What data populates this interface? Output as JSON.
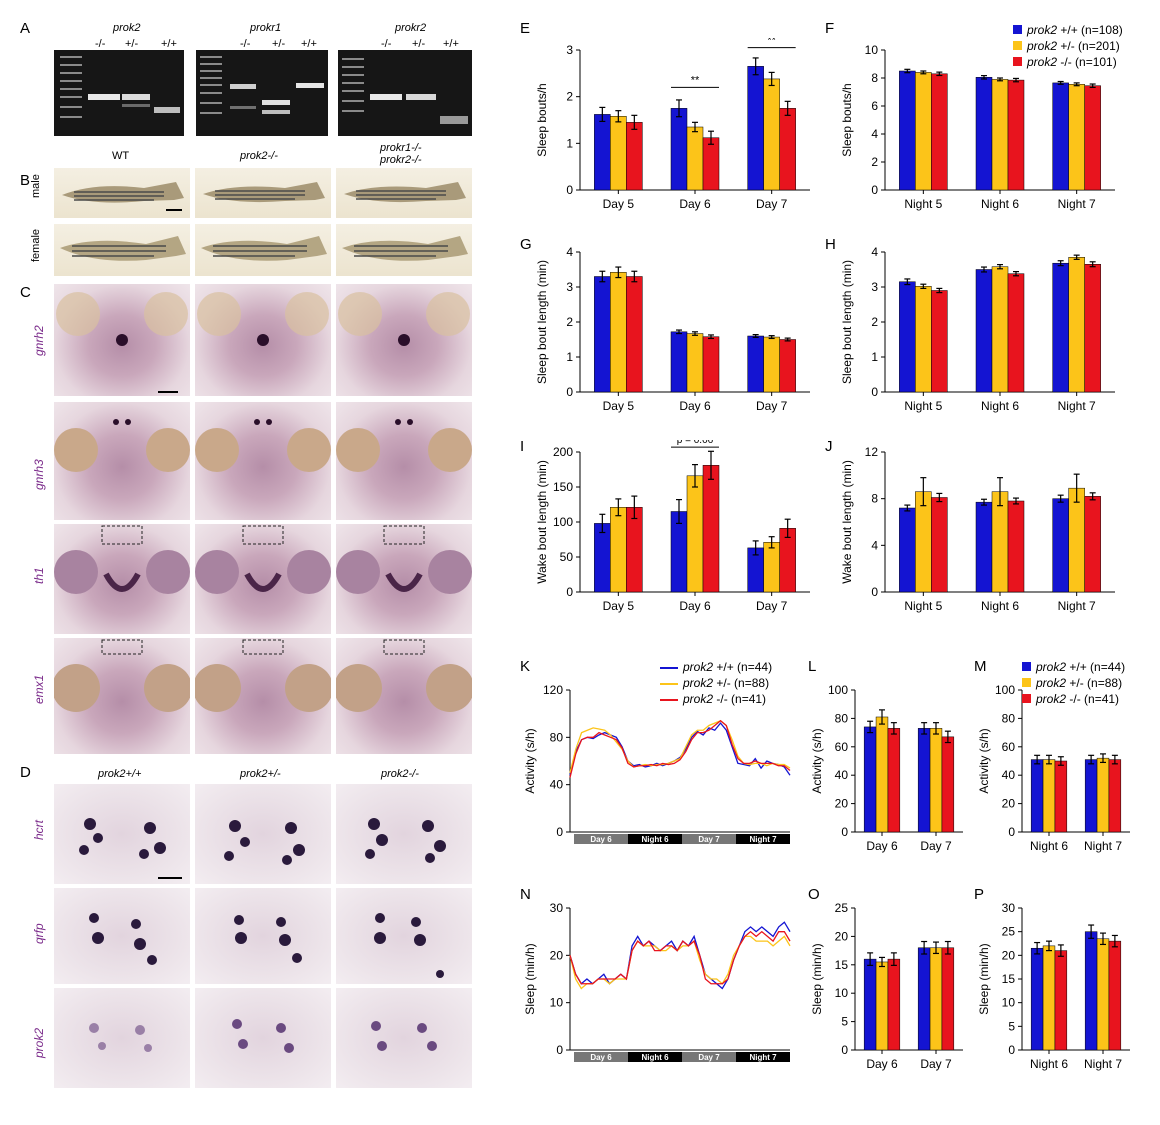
{
  "panels": {
    "A": "A",
    "B": "B",
    "C": "C",
    "D": "D",
    "E": "E",
    "F": "F",
    "G": "G",
    "H": "H",
    "I": "I",
    "J": "J",
    "K": "K",
    "L": "L",
    "M": "M",
    "N": "N",
    "O": "O",
    "P": "P"
  },
  "gels": [
    {
      "title": "prok2",
      "lanes": [
        "-/-",
        "+/-",
        "+/+"
      ]
    },
    {
      "title": "prokr1",
      "lanes": [
        "-/-",
        "+/-",
        "+/+"
      ]
    },
    {
      "title": "prokr2",
      "lanes": [
        "-/-",
        "+/-",
        "+/+"
      ]
    }
  ],
  "fish": {
    "cols": [
      "WT",
      "prok2-/-",
      "prokr1-/-",
      "prokr2-/-"
    ],
    "rows": [
      "male",
      "female"
    ]
  },
  "genes_c": [
    "gnrh2",
    "gnrh3",
    "th1",
    "emx1"
  ],
  "genes_d": [
    "hcrt",
    "qrfp",
    "prok2"
  ],
  "genotypes_d": [
    "prok2+/+",
    "prok2+/-",
    "prok2-/-"
  ],
  "colors": {
    "wt": "#1414d2",
    "het": "#fcc419",
    "mut": "#e8141e"
  },
  "legend_ef": [
    {
      "geno": "prok2",
      "label": "+/+ (n=108)"
    },
    {
      "geno": "prok2",
      "label": "+/- (n=201)"
    },
    {
      "geno": "prok2",
      "label": "-/- (n=101)"
    }
  ],
  "legend_km": [
    {
      "geno": "prok2",
      "label": "+/+ (n=44)"
    },
    {
      "geno": "prok2",
      "label": "+/- (n=88)"
    },
    {
      "geno": "prok2",
      "label": "-/- (n=41)"
    }
  ],
  "strip_k": [
    "Day 6",
    "Night 6",
    "Day 7",
    "Night 7"
  ],
  "chart_data": [
    {
      "panel": "E",
      "type": "bar",
      "ylabel": "Sleep bouts/h",
      "ylim": [
        0,
        3
      ],
      "yticks": [
        0,
        1,
        2,
        3
      ],
      "categories": [
        "Day 5",
        "Day 6",
        "Day 7"
      ],
      "series": [
        {
          "values": [
            1.62,
            1.75,
            2.65
          ],
          "err": [
            0.15,
            0.18,
            0.18
          ]
        },
        {
          "values": [
            1.58,
            1.35,
            2.38
          ],
          "err": [
            0.12,
            0.1,
            0.14
          ]
        },
        {
          "values": [
            1.45,
            1.12,
            1.75
          ],
          "err": [
            0.15,
            0.14,
            0.15
          ]
        }
      ],
      "sig": [
        {
          "cat": 1,
          "label": "**",
          "y": 2.2
        },
        {
          "cat": 2,
          "label": "**",
          "y": 3.05
        }
      ]
    },
    {
      "panel": "F",
      "type": "bar",
      "ylabel": "Sleep bouts/h",
      "ylim": [
        0,
        10
      ],
      "yticks": [
        0,
        2,
        4,
        6,
        8,
        10
      ],
      "categories": [
        "Night 5",
        "Night 6",
        "Night 7"
      ],
      "series": [
        {
          "values": [
            8.5,
            8.05,
            7.65
          ],
          "err": [
            0.12,
            0.12,
            0.1
          ]
        },
        {
          "values": [
            8.4,
            7.9,
            7.55
          ],
          "err": [
            0.1,
            0.1,
            0.1
          ]
        },
        {
          "values": [
            8.3,
            7.85,
            7.45
          ],
          "err": [
            0.12,
            0.12,
            0.12
          ]
        }
      ]
    },
    {
      "panel": "G",
      "type": "bar",
      "ylabel": "Sleep bout length (min)",
      "ylim": [
        0,
        4
      ],
      "yticks": [
        0,
        1,
        2,
        3,
        4
      ],
      "categories": [
        "Day 5",
        "Day 6",
        "Day 7"
      ],
      "series": [
        {
          "values": [
            3.3,
            1.72,
            1.6
          ],
          "err": [
            0.15,
            0.05,
            0.04
          ]
        },
        {
          "values": [
            3.42,
            1.67,
            1.57
          ],
          "err": [
            0.15,
            0.05,
            0.04
          ]
        },
        {
          "values": [
            3.3,
            1.58,
            1.5
          ],
          "err": [
            0.15,
            0.05,
            0.04
          ]
        }
      ]
    },
    {
      "panel": "H",
      "type": "bar",
      "ylabel": "Sleep bout length (min)",
      "ylim": [
        0,
        4
      ],
      "yticks": [
        0,
        1,
        2,
        3,
        4
      ],
      "categories": [
        "Night 5",
        "Night 6",
        "Night 7"
      ],
      "series": [
        {
          "values": [
            3.15,
            3.5,
            3.68
          ],
          "err": [
            0.08,
            0.07,
            0.07
          ]
        },
        {
          "values": [
            3.02,
            3.58,
            3.85
          ],
          "err": [
            0.06,
            0.06,
            0.06
          ]
        },
        {
          "values": [
            2.9,
            3.38,
            3.65
          ],
          "err": [
            0.06,
            0.06,
            0.07
          ]
        }
      ]
    },
    {
      "panel": "I",
      "type": "bar",
      "ylabel": "Wake bout length (min)",
      "ylim": [
        0,
        200
      ],
      "yticks": [
        0,
        50,
        100,
        150,
        200
      ],
      "categories": [
        "Day 5",
        "Day 6",
        "Day 7"
      ],
      "series": [
        {
          "values": [
            98,
            115,
            63
          ],
          "err": [
            13,
            17,
            10
          ]
        },
        {
          "values": [
            121,
            166,
            71
          ],
          "err": [
            12,
            16,
            8
          ]
        },
        {
          "values": [
            121,
            181,
            91
          ],
          "err": [
            16,
            20,
            13
          ]
        }
      ],
      "sig": [
        {
          "cat": 1,
          "label": "p = 0.06",
          "y": 207
        }
      ]
    },
    {
      "panel": "J",
      "type": "bar",
      "ylabel": "Wake bout length (min)",
      "ylim": [
        0,
        12
      ],
      "yticks": [
        0,
        4,
        8,
        12
      ],
      "categories": [
        "Night 5",
        "Night 6",
        "Night 7"
      ],
      "series": [
        {
          "values": [
            7.2,
            7.7,
            8.0
          ],
          "err": [
            0.25,
            0.25,
            0.3
          ]
        },
        {
          "values": [
            8.6,
            8.6,
            8.9
          ],
          "err": [
            1.2,
            1.2,
            1.2
          ]
        },
        {
          "values": [
            8.1,
            7.8,
            8.2
          ],
          "err": [
            0.35,
            0.25,
            0.3
          ]
        }
      ]
    },
    {
      "panel": "L",
      "type": "bar",
      "ylabel": "Activity (s/h)",
      "ylim": [
        0,
        100
      ],
      "yticks": [
        0,
        20,
        40,
        60,
        80,
        100
      ],
      "categories": [
        "Day 6",
        "Day 7"
      ],
      "series": [
        {
          "values": [
            74,
            73
          ],
          "err": [
            4,
            4
          ]
        },
        {
          "values": [
            81,
            73
          ],
          "err": [
            5,
            4
          ]
        },
        {
          "values": [
            73,
            67
          ],
          "err": [
            4,
            4
          ]
        }
      ]
    },
    {
      "panel": "M",
      "type": "bar",
      "ylabel": "Activity (s/h)",
      "ylim": [
        0,
        100
      ],
      "yticks": [
        0,
        20,
        40,
        60,
        80,
        100
      ],
      "categories": [
        "Night 6",
        "Night 7"
      ],
      "series": [
        {
          "values": [
            51,
            51
          ],
          "err": [
            3,
            3
          ]
        },
        {
          "values": [
            51,
            52
          ],
          "err": [
            3,
            3
          ]
        },
        {
          "values": [
            50,
            51
          ],
          "err": [
            3,
            3
          ]
        }
      ]
    },
    {
      "panel": "O",
      "type": "bar",
      "ylabel": "Sleep (min/h)",
      "ylim": [
        0,
        25
      ],
      "yticks": [
        0,
        5,
        10,
        15,
        20,
        25
      ],
      "categories": [
        "Day 6",
        "Day 7"
      ],
      "series": [
        {
          "values": [
            16,
            18
          ],
          "err": [
            1.1,
            1.1
          ]
        },
        {
          "values": [
            15.5,
            18
          ],
          "err": [
            0.8,
            1.0
          ]
        },
        {
          "values": [
            16,
            18
          ],
          "err": [
            1.1,
            1.1
          ]
        }
      ]
    },
    {
      "panel": "P",
      "type": "bar",
      "ylabel": "Sleep (min/h)",
      "ylim": [
        0,
        30
      ],
      "yticks": [
        0,
        5,
        10,
        15,
        20,
        25,
        30
      ],
      "categories": [
        "Night 6",
        "Night 7"
      ],
      "series": [
        {
          "values": [
            21.5,
            25
          ],
          "err": [
            1.2,
            1.4
          ]
        },
        {
          "values": [
            22,
            23.5
          ],
          "err": [
            1.0,
            1.2
          ]
        },
        {
          "values": [
            21,
            23
          ],
          "err": [
            1.2,
            1.2
          ]
        }
      ]
    },
    {
      "panel": "K",
      "type": "line",
      "ylabel": "Activity (s/h)",
      "ylim": [
        0,
        120
      ],
      "yticks": [
        0,
        40,
        80,
        120
      ],
      "series": [
        {
          "values": [
            48,
            68,
            78,
            80,
            79,
            82,
            84,
            82,
            80,
            72,
            60,
            56,
            57,
            55,
            56,
            58,
            56,
            58,
            60,
            63,
            70,
            80,
            85,
            82,
            88,
            86,
            92,
            86,
            72,
            58,
            57,
            56,
            62,
            54,
            60,
            58,
            57,
            55,
            48
          ]
        },
        {
          "values": [
            50,
            70,
            84,
            86,
            88,
            87,
            86,
            82,
            76,
            70,
            60,
            55,
            56,
            57,
            56,
            57,
            57,
            58,
            60,
            62,
            72,
            82,
            86,
            86,
            90,
            92,
            94,
            90,
            78,
            64,
            58,
            57,
            58,
            58,
            56,
            58,
            57,
            57,
            54
          ]
        },
        {
          "values": [
            46,
            66,
            78,
            80,
            80,
            84,
            82,
            80,
            78,
            71,
            58,
            55,
            56,
            56,
            57,
            56,
            58,
            57,
            58,
            61,
            68,
            78,
            84,
            84,
            86,
            90,
            94,
            90,
            74,
            62,
            58,
            58,
            60,
            58,
            58,
            58,
            56,
            56,
            52
          ]
        }
      ]
    },
    {
      "panel": "N",
      "type": "line",
      "ylabel": "Sleep (min/h)",
      "ylim": [
        0,
        30
      ],
      "yticks": [
        0,
        10,
        20,
        30
      ],
      "series": [
        {
          "values": [
            20,
            16,
            14,
            15,
            14,
            15,
            16,
            14,
            15,
            16,
            15,
            22,
            24,
            22,
            23,
            22,
            21,
            22,
            23,
            21,
            23,
            22,
            24,
            20,
            16,
            15,
            14,
            13,
            15,
            19,
            22,
            25,
            26,
            25,
            26,
            25,
            24,
            26,
            27,
            25
          ]
        },
        {
          "values": [
            20,
            15,
            13,
            14,
            14,
            15,
            15,
            14,
            15,
            15,
            15,
            21,
            23,
            22,
            22,
            22,
            21,
            21,
            22,
            21,
            22,
            22,
            23,
            19,
            16,
            15,
            15,
            14,
            16,
            20,
            22,
            24,
            24,
            23,
            23,
            23,
            22,
            23,
            24,
            22
          ]
        },
        {
          "values": [
            20,
            16,
            14,
            14,
            14,
            15,
            15,
            15,
            15,
            16,
            15,
            21,
            23,
            22,
            23,
            21,
            21,
            22,
            22,
            21,
            23,
            22,
            23,
            20,
            15,
            14,
            14,
            14,
            15,
            19,
            22,
            24,
            25,
            24,
            25,
            24,
            23,
            25,
            25,
            23
          ]
        }
      ]
    }
  ]
}
